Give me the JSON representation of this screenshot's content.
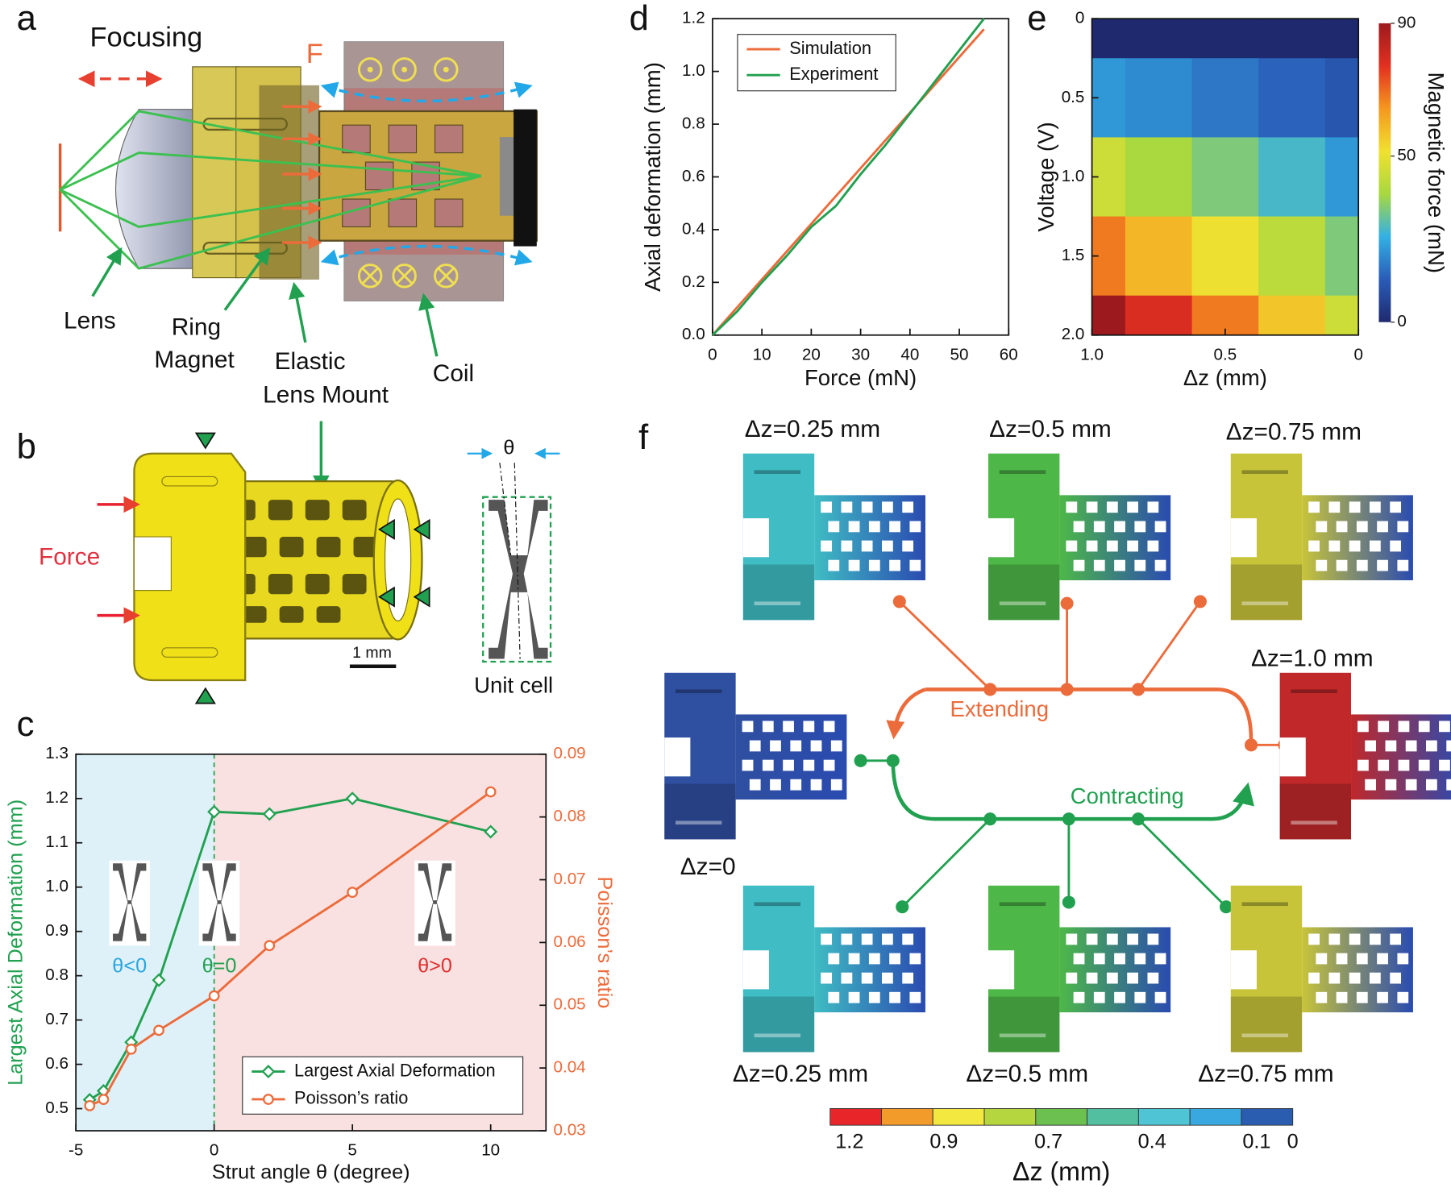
{
  "panel_labels": [
    "a",
    "b",
    "c",
    "d",
    "e",
    "f"
  ],
  "panel_a": {
    "focusing": "Focusing",
    "force": "F",
    "lens": "Lens",
    "ring_magnet": [
      "Ring",
      "Magnet"
    ],
    "lens_mount": [
      "Elastic",
      "Lens Mount"
    ],
    "coil": "Coil"
  },
  "panel_b": {
    "force": "Force",
    "scale_bar": "1 mm",
    "unit_cell": "Unit cell",
    "angle": "θ"
  },
  "panel_f": {
    "states": [
      "Δz=0.25 mm",
      "Δz=0.5 mm",
      "Δz=0.75 mm",
      "Δz=1.0 mm",
      "Δz=0",
      "Δz=0.25 mm",
      "Δz=0.5 mm",
      "Δz=0.75 mm"
    ],
    "extending": "Extending",
    "contracting": "Contracting",
    "colorbar": {
      "title": "Δz (mm)",
      "ticks": [
        1.2,
        0.9,
        0.7,
        0.4,
        0.1,
        0
      ]
    }
  },
  "chart_data": [
    {
      "type": "line",
      "x_label": "Strut angle θ (degree)",
      "y_label": "Largest Axial Deformation (mm)",
      "y2_label": "Poisson’s ratio",
      "xlim": [
        -5,
        12
      ],
      "xticks": [
        -5,
        0,
        5,
        10
      ],
      "ylim": [
        0.45,
        1.3
      ],
      "yticks": [
        0.5,
        0.6,
        0.7,
        0.8,
        0.9,
        {
          "value": 1,
          "label": "1.0"
        },
        1.1,
        1.2,
        1.3
      ],
      "y2lim": [
        0.03,
        0.09
      ],
      "y2ticks": [
        0.03,
        0.04,
        0.05,
        0.06,
        0.07,
        0.08,
        0.09
      ],
      "regions": [
        {
          "xlim": [
            -5,
            0
          ],
          "color": "#def1f9"
        },
        {
          "xlim": [
            0,
            12
          ],
          "color": "#f9e1e1"
        }
      ],
      "vline": 0,
      "annotations": [
        {
          "text": "θ<0",
          "color": "#2aa6e0"
        },
        {
          "text": "θ=0",
          "color": "#21a150"
        },
        {
          "text": "θ>0",
          "color": "#e03030"
        }
      ],
      "legend": "lower right",
      "series": [
        {
          "name": "Largest Axial Deformation",
          "color": "#21a150",
          "marker": "diamond",
          "x": [
            -4.5,
            -4,
            -3,
            -2,
            0,
            2,
            5,
            10
          ],
          "values": [
            0.52,
            0.54,
            0.65,
            0.79,
            1.17,
            1.165,
            1.2,
            1.125
          ]
        },
        {
          "name": "Poisson’s ratio",
          "color": "#ec6b3b",
          "marker": "circle",
          "axis": "y2",
          "x": [
            -4.5,
            -4,
            -3,
            -2,
            0,
            2,
            5,
            10
          ],
          "values": [
            0.034,
            0.035,
            0.043,
            0.046,
            0.0515,
            0.0595,
            0.068,
            0.084
          ]
        }
      ]
    },
    {
      "type": "line",
      "x_label": "Force (mN)",
      "y_label": "Axial deformation (mm)",
      "xlim": [
        0,
        60
      ],
      "xticks": [
        0,
        10,
        20,
        30,
        40,
        50,
        60
      ],
      "ylim": [
        0,
        1.2
      ],
      "yticks": [
        {
          "value": 0,
          "label": "0.0"
        },
        0.2,
        0.4,
        0.6,
        0.8,
        {
          "value": 1,
          "label": "1.0"
        },
        1.2
      ],
      "legend": "upper left",
      "series": [
        {
          "name": "Simulation",
          "color": "#ec6b3b",
          "x": [
            0,
            55
          ],
          "values": [
            0,
            1.16
          ]
        },
        {
          "name": "Experiment",
          "color": "#21a150",
          "x": [
            0,
            5,
            10,
            15,
            20,
            25,
            30,
            35,
            40,
            45,
            50,
            55
          ],
          "values": [
            0,
            0.09,
            0.2,
            0.3,
            0.41,
            0.49,
            0.61,
            0.72,
            0.84,
            0.96,
            1.08,
            1.2
          ]
        }
      ]
    },
    {
      "type": "heatmap",
      "x_label": "Δz (mm)",
      "y_label": "Voltage (V)",
      "xlim": [
        1,
        0
      ],
      "xticks": [
        {
          "value": 1,
          "label": "1.0"
        },
        0.5,
        0
      ],
      "ylim": [
        2,
        0
      ],
      "yticks": [
        0,
        0.5,
        {
          "value": 1,
          "label": "1.0"
        },
        1.5,
        {
          "value": 2,
          "label": "2.0"
        }
      ],
      "x": [
        1,
        0.75,
        0.5,
        0.25,
        0
      ],
      "y": [
        0,
        0.5,
        1,
        1.5,
        2
      ],
      "z": [
        [
          0,
          0,
          0,
          0,
          0
        ],
        [
          22,
          20,
          17,
          14,
          11
        ],
        [
          45,
          39,
          34,
          28,
          22
        ],
        [
          68,
          59,
          51,
          42,
          34
        ],
        [
          90,
          79,
          68,
          56,
          45
        ]
      ],
      "colormap": [
        "#1f2a6e",
        "#2a5cb8",
        "#33b0e4",
        "#a8d840",
        "#f0e030",
        "#f5981f",
        "#e23020",
        "#9c1a1e"
      ],
      "colorbar": {
        "label": "Magnetic force (mN)",
        "lim": [
          0,
          90
        ],
        "ticks": [
          0,
          50,
          90
        ]
      }
    }
  ]
}
